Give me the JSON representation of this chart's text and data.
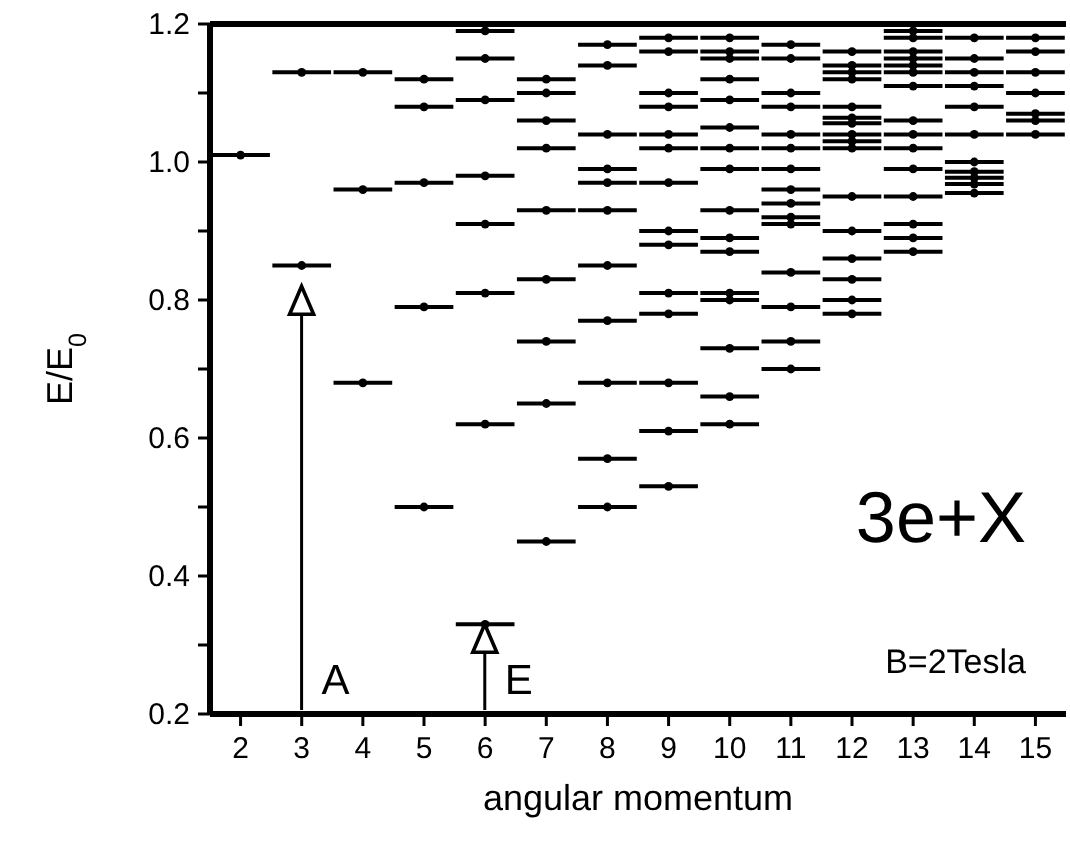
{
  "chart_data": {
    "type": "scatter",
    "xlabel": "angular momentum",
    "ylabel": "E/E$_{0}$",
    "xlim": [
      1.5,
      15.5
    ],
    "ylim": [
      0.2,
      1.2
    ],
    "xticks": [
      2,
      3,
      4,
      5,
      6,
      7,
      8,
      9,
      10,
      11,
      12,
      13,
      14,
      15
    ],
    "yticks": [
      {
        "value": 0.2,
        "label": "0.2"
      },
      {
        "value": 0.3,
        "label": null
      },
      {
        "value": 0.4,
        "label": "0.4"
      },
      {
        "value": 0.5,
        "label": null
      },
      {
        "value": 0.6,
        "label": "0.6"
      },
      {
        "value": 0.7,
        "label": null
      },
      {
        "value": 0.8,
        "label": "0.8"
      },
      {
        "value": 0.9,
        "label": null
      },
      {
        "value": 1,
        "label": "1.0"
      },
      {
        "value": 1.1,
        "label": null
      },
      {
        "value": 1.2,
        "label": "1.2"
      }
    ],
    "grid": false,
    "series": [
      {
        "color": "#000000",
        "x": [
          2,
          3,
          3,
          4,
          4,
          4,
          5,
          5,
          5,
          5,
          5,
          6,
          6,
          6,
          6,
          6,
          6,
          6,
          6,
          7,
          7,
          7,
          7,
          7,
          7,
          7,
          7,
          7,
          8,
          8,
          8,
          8,
          8,
          8,
          8,
          8,
          8,
          8,
          8,
          9,
          9,
          9,
          9,
          9,
          9,
          9,
          9,
          9,
          9,
          9,
          9,
          9,
          9,
          10,
          10,
          10,
          10,
          10,
          10,
          10,
          10,
          10,
          10,
          10,
          10,
          10,
          10,
          10,
          10,
          11,
          11,
          11,
          11,
          11,
          11,
          11,
          11,
          11,
          11,
          11,
          11,
          11,
          11,
          11,
          12,
          12,
          12,
          12,
          12,
          12,
          12,
          12,
          12,
          12,
          12,
          12,
          12,
          12,
          12,
          12,
          13,
          13,
          13,
          13,
          13,
          13,
          13,
          13,
          13,
          13,
          13,
          13,
          13,
          13,
          13,
          14,
          14,
          14,
          14,
          14,
          14,
          14,
          14,
          14,
          14,
          14,
          15,
          15,
          15,
          15,
          15,
          15,
          15
        ],
        "xerrors": [
          0.48,
          0.48,
          0.48,
          0.48,
          0.48,
          0.48,
          0.48,
          0.48,
          0.48,
          0.48,
          0.48,
          0.48,
          0.48,
          0.48,
          0.48,
          0.48,
          0.48,
          0.48,
          0.48,
          0.48,
          0.48,
          0.48,
          0.48,
          0.48,
          0.48,
          0.48,
          0.48,
          0.48,
          0.48,
          0.48,
          0.48,
          0.48,
          0.48,
          0.48,
          0.48,
          0.48,
          0.48,
          0.48,
          0.48,
          0.48,
          0.48,
          0.48,
          0.48,
          0.48,
          0.48,
          0.48,
          0.48,
          0.48,
          0.48,
          0.48,
          0.48,
          0.48,
          0.48,
          0.48,
          0.48,
          0.48,
          0.48,
          0.48,
          0.48,
          0.48,
          0.48,
          0.48,
          0.48,
          0.48,
          0.48,
          0.48,
          0.48,
          0.48,
          0.48,
          0.48,
          0.48,
          0.48,
          0.48,
          0.48,
          0.48,
          0.48,
          0.48,
          0.48,
          0.48,
          0.48,
          0.48,
          0.48,
          0.48,
          0.48,
          0.48,
          0.48,
          0.48,
          0.48,
          0.48,
          0.48,
          0.48,
          0.48,
          0.48,
          0.48,
          0.48,
          0.48,
          0.48,
          0.48,
          0.48,
          0.48,
          0.48,
          0.48,
          0.48,
          0.48,
          0.48,
          0.48,
          0.48,
          0.48,
          0.48,
          0.48,
          0.48,
          0.48,
          0.48,
          0.48,
          0.48,
          0.48,
          0.48,
          0.48,
          0.48,
          0.48,
          0.48,
          0.48,
          0.48,
          0.48,
          0.48,
          0.48,
          0.48,
          0.48,
          0.48,
          0.48,
          0.48,
          0.48,
          0.48
        ],
        "values": [
          1.01,
          1.13,
          0.85,
          1.13,
          0.96,
          0.68,
          1.12,
          1.08,
          0.97,
          0.79,
          0.5,
          1.19,
          1.15,
          1.09,
          0.98,
          0.91,
          0.81,
          0.62,
          0.33,
          1.12,
          1.1,
          1.06,
          1.02,
          0.93,
          0.83,
          0.74,
          0.65,
          0.45,
          1.17,
          1.14,
          1.04,
          0.99,
          0.97,
          0.93,
          0.85,
          0.77,
          0.68,
          0.57,
          0.5,
          1.18,
          1.16,
          1.1,
          1.08,
          1.04,
          1.02,
          0.97,
          0.9,
          0.88,
          0.81,
          0.78,
          0.68,
          0.61,
          0.53,
          1.18,
          1.16,
          1.15,
          1.12,
          1.09,
          1.05,
          1.02,
          0.99,
          0.93,
          0.89,
          0.87,
          0.81,
          0.8,
          0.73,
          0.66,
          0.62,
          1.17,
          1.15,
          1.1,
          1.08,
          1.04,
          1.02,
          0.99,
          0.96,
          0.94,
          0.92,
          0.91,
          0.84,
          0.79,
          0.74,
          0.7,
          1.16,
          1.14,
          1.13,
          1.12,
          1.08,
          1.064,
          1.056,
          1.04,
          1.03,
          1.02,
          0.95,
          0.9,
          0.86,
          0.83,
          0.8,
          0.78,
          1.19,
          1.18,
          1.16,
          1.15,
          1.14,
          1.13,
          1.11,
          1.06,
          1.04,
          1.02,
          0.99,
          0.95,
          0.91,
          0.89,
          0.87,
          1.18,
          1.15,
          1.13,
          1.11,
          1.08,
          1.04,
          1,
          0.986,
          0.977,
          0.968,
          0.955,
          1.18,
          1.16,
          1.13,
          1.1,
          1.07,
          1.06,
          1.04
        ]
      }
    ],
    "annotations": [
      "A",
      "E",
      "3e+X",
      "B=2Tesla"
    ]
  }
}
